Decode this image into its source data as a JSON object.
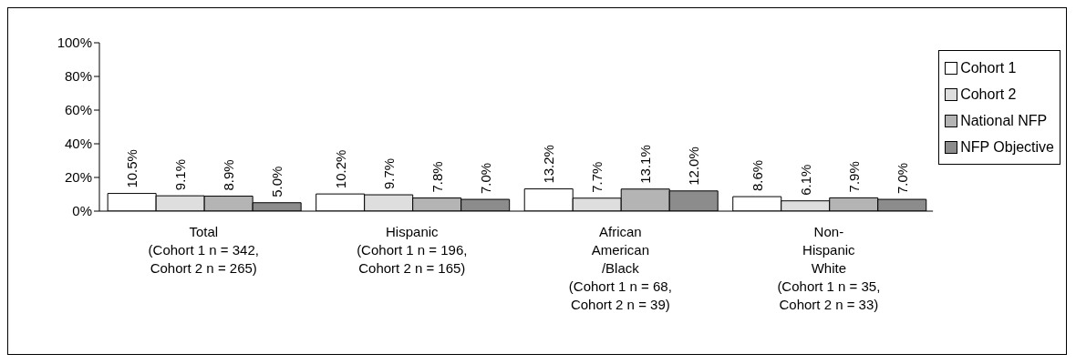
{
  "chart_data": {
    "type": "bar",
    "categories": [
      "Total\n(Cohort 1 n = 342,\nCohort 2 n = 265)",
      "Hispanic\n(Cohort 1 n = 196,\nCohort 2 n = 165)",
      "African\nAmerican\n/Black\n(Cohort 1 n = 68,\nCohort 2 n = 39)",
      "Non-\nHispanic\nWhite\n(Cohort 1 n = 35,\nCohort 2 n = 33)"
    ],
    "series": [
      {
        "name": "Cohort 1",
        "color": "#ffffff",
        "values": [
          10.5,
          10.2,
          13.2,
          8.6
        ],
        "value_labels": [
          "10.5%",
          "10.2%",
          "13.2%",
          "8.6%"
        ]
      },
      {
        "name": "Cohort 2",
        "color": "#dedede",
        "values": [
          9.1,
          9.7,
          7.7,
          6.1
        ],
        "value_labels": [
          "9.1%",
          "9.7%",
          "7.7%",
          "6.1%"
        ]
      },
      {
        "name": "National NFP",
        "color": "#b4b4b4",
        "values": [
          8.9,
          7.8,
          13.1,
          7.9
        ],
        "value_labels": [
          "8.9%",
          "7.8%",
          "13.1%",
          "7.9%"
        ]
      },
      {
        "name": "NFP Objective",
        "color": "#8c8c8c",
        "values": [
          5.0,
          7.0,
          12.0,
          7.0
        ],
        "value_labels": [
          "5.0%",
          "7.0%",
          "12.0%",
          "7.0%"
        ]
      }
    ],
    "ylim": [
      0,
      100
    ],
    "yticks": [
      {
        "value": 0,
        "label": "0%"
      },
      {
        "value": 20,
        "label": "20%"
      },
      {
        "value": 40,
        "label": "40%"
      },
      {
        "value": 60,
        "label": "60%"
      },
      {
        "value": 80,
        "label": "80%"
      },
      {
        "value": 100,
        "label": "100%"
      }
    ],
    "grid": false,
    "legend": "right"
  }
}
